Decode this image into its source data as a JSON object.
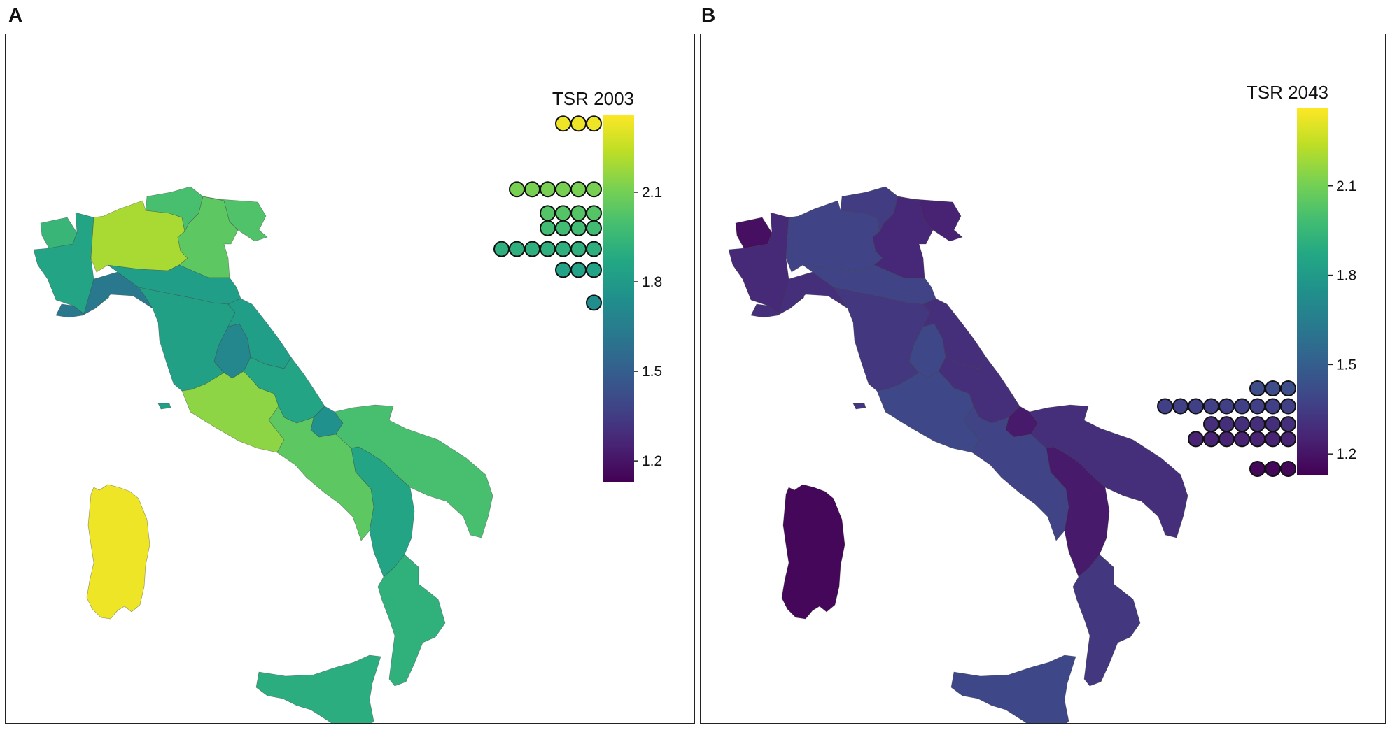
{
  "panels": [
    {
      "letter": "A",
      "legend_title": "TSR 2003",
      "year": 2003,
      "tick_labels": [
        "2.1",
        "1.8",
        "1.5",
        "1.2"
      ],
      "tick_values": [
        2.1,
        1.8,
        1.5,
        1.2
      ],
      "colorbar_range": [
        1.13,
        2.36
      ],
      "histogram": [
        {
          "value": 2.33,
          "count": 3
        },
        {
          "value": 2.11,
          "count": 6
        },
        {
          "value": 2.03,
          "count": 4
        },
        {
          "value": 1.98,
          "count": 4
        },
        {
          "value": 1.91,
          "count": 7
        },
        {
          "value": 1.84,
          "count": 3
        },
        {
          "value": 1.73,
          "count": 1
        }
      ],
      "region_values": {
        "valle_aosta": 1.95,
        "piemonte": 1.85,
        "lombardia": 2.2,
        "trentino": 2.0,
        "veneto": 2.05,
        "friuli": 2.02,
        "liguria": 1.62,
        "emilia": 1.82,
        "toscana": 1.83,
        "umbria": 1.7,
        "marche": 1.82,
        "lazio": 2.15,
        "abruzzo": 1.85,
        "molise": 1.75,
        "campania": 2.05,
        "puglia": 2.0,
        "basilicata": 1.85,
        "calabria": 1.92,
        "sicilia": 1.9,
        "sardegna": 2.33,
        "elba": 1.83
      }
    },
    {
      "letter": "B",
      "legend_title": "TSR 2043",
      "year": 2043,
      "tick_labels": [
        "2.1",
        "1.8",
        "1.5",
        "1.2"
      ],
      "tick_values": [
        2.1,
        1.8,
        1.5,
        1.2
      ],
      "colorbar_range": [
        1.13,
        2.36
      ],
      "histogram": [
        {
          "value": 1.42,
          "count": 3
        },
        {
          "value": 1.36,
          "count": 9
        },
        {
          "value": 1.3,
          "count": 6
        },
        {
          "value": 1.25,
          "count": 7
        },
        {
          "value": 1.15,
          "count": 3
        }
      ],
      "region_values": {
        "valle_aosta": 1.18,
        "piemonte": 1.28,
        "lombardia": 1.38,
        "trentino": 1.35,
        "veneto": 1.27,
        "friuli": 1.25,
        "liguria": 1.3,
        "emilia": 1.38,
        "toscana": 1.33,
        "umbria": 1.4,
        "marche": 1.3,
        "lazio": 1.4,
        "abruzzo": 1.3,
        "molise": 1.22,
        "campania": 1.38,
        "puglia": 1.3,
        "basilicata": 1.22,
        "calabria": 1.33,
        "sicilia": 1.4,
        "sardegna": 1.15,
        "elba": 1.33
      }
    }
  ]
}
